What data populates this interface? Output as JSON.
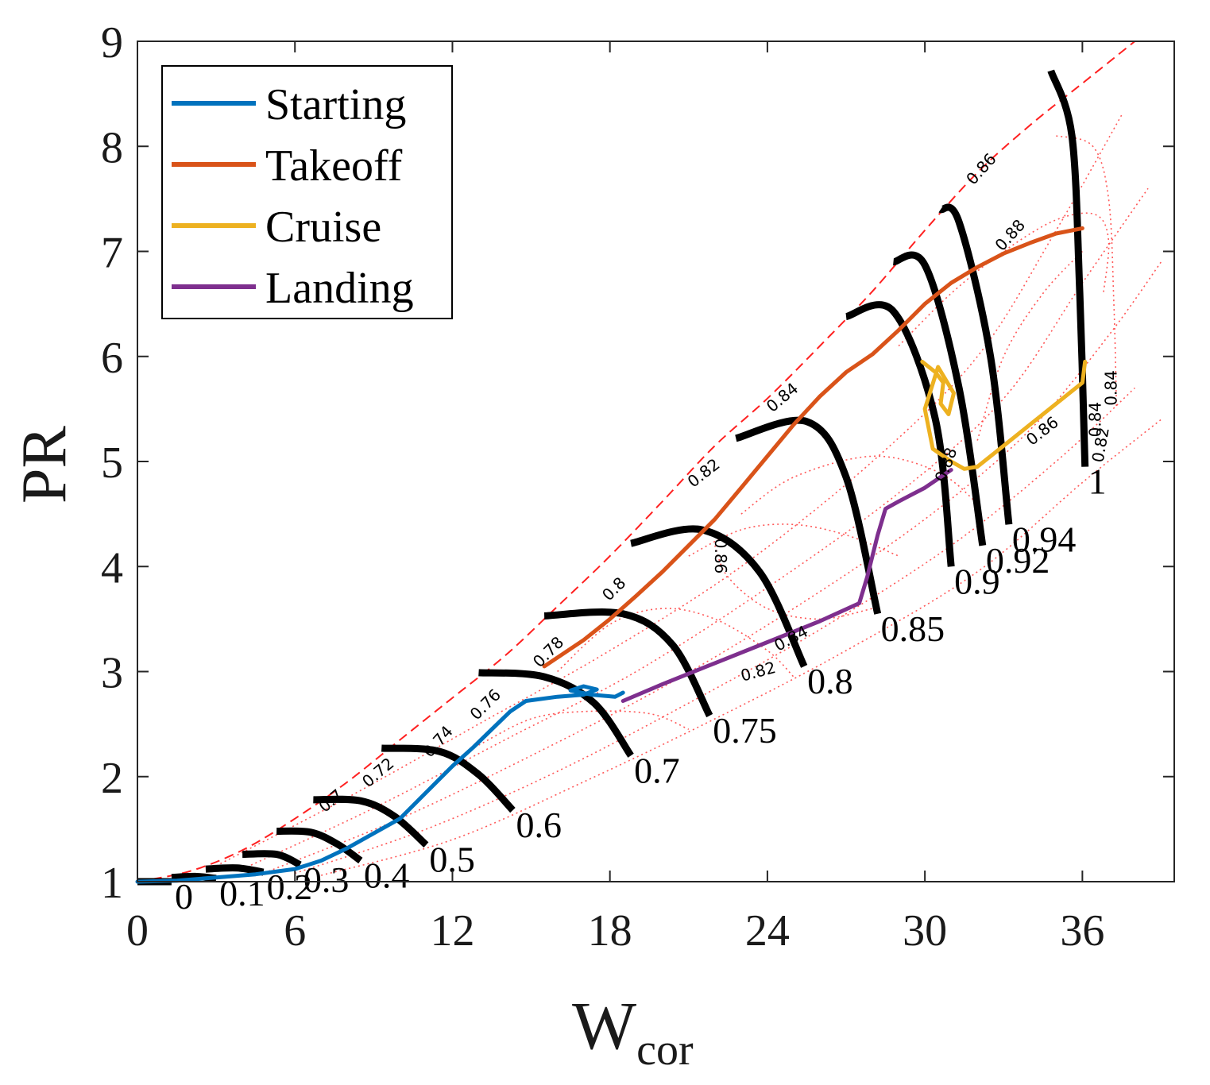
{
  "chart_data": {
    "type": "line",
    "xlabel": "W",
    "xlabel_subscript": "cor",
    "ylabel": "PR",
    "xlim": [
      0,
      39.5
    ],
    "ylim": [
      1,
      9
    ],
    "xticks": [
      0,
      6,
      12,
      18,
      24,
      30,
      36
    ],
    "yticks": [
      1,
      2,
      3,
      4,
      5,
      6,
      7,
      8,
      9
    ],
    "legend_position": "top-left",
    "series": [
      {
        "name": "Starting",
        "color": "#0072BD",
        "points": [
          [
            0,
            1.0
          ],
          [
            1.5,
            1.01
          ],
          [
            3,
            1.04
          ],
          [
            4.5,
            1.07
          ],
          [
            6,
            1.12
          ],
          [
            7,
            1.2
          ],
          [
            8,
            1.32
          ],
          [
            9,
            1.46
          ],
          [
            10,
            1.6
          ],
          [
            11,
            1.85
          ],
          [
            12,
            2.1
          ],
          [
            12.8,
            2.28
          ],
          [
            13.5,
            2.45
          ],
          [
            14.2,
            2.62
          ],
          [
            14.8,
            2.72
          ],
          [
            16,
            2.76
          ],
          [
            17,
            2.78
          ],
          [
            17.5,
            2.83
          ],
          [
            17,
            2.86
          ],
          [
            16.5,
            2.82
          ],
          [
            17.3,
            2.78
          ],
          [
            18.2,
            2.76
          ],
          [
            18.5,
            2.8
          ]
        ]
      },
      {
        "name": "Takeoff",
        "color": "#D95319",
        "points": [
          [
            15.5,
            3.05
          ],
          [
            17,
            3.3
          ],
          [
            18,
            3.5
          ],
          [
            19,
            3.72
          ],
          [
            20,
            3.95
          ],
          [
            21,
            4.2
          ],
          [
            22,
            4.45
          ],
          [
            23,
            4.75
          ],
          [
            24,
            5.05
          ],
          [
            25,
            5.35
          ],
          [
            26,
            5.62
          ],
          [
            27,
            5.85
          ],
          [
            28,
            6.02
          ],
          [
            29,
            6.25
          ],
          [
            30,
            6.5
          ],
          [
            31,
            6.7
          ],
          [
            32,
            6.85
          ],
          [
            33,
            6.98
          ],
          [
            34,
            7.08
          ],
          [
            35,
            7.17
          ],
          [
            36,
            7.22
          ]
        ]
      },
      {
        "name": "Cruise",
        "color": "#EDB120",
        "points": [
          [
            36.1,
            5.95
          ],
          [
            36,
            5.75
          ],
          [
            35,
            5.55
          ],
          [
            34,
            5.35
          ],
          [
            33,
            5.15
          ],
          [
            32,
            4.95
          ],
          [
            31.5,
            4.93
          ],
          [
            31,
            5.0
          ],
          [
            30.3,
            5.12
          ],
          [
            30,
            5.5
          ],
          [
            30.5,
            5.9
          ],
          [
            31.1,
            5.65
          ],
          [
            30.9,
            5.45
          ],
          [
            30.6,
            5.55
          ],
          [
            30.7,
            5.75
          ],
          [
            30.4,
            5.85
          ],
          [
            29.9,
            5.95
          ]
        ]
      },
      {
        "name": "Landing",
        "color": "#7E2F8E",
        "points": [
          [
            18.5,
            2.72
          ],
          [
            20,
            2.88
          ],
          [
            22,
            3.08
          ],
          [
            24,
            3.28
          ],
          [
            26,
            3.48
          ],
          [
            27.5,
            3.65
          ],
          [
            27.8,
            3.9
          ],
          [
            28,
            4.1
          ],
          [
            28.2,
            4.3
          ],
          [
            28.5,
            4.55
          ],
          [
            29,
            4.62
          ],
          [
            30,
            4.75
          ],
          [
            31,
            4.92
          ]
        ]
      }
    ],
    "speed_lines": [
      {
        "label": "0",
        "points": [
          [
            0,
            1.0
          ],
          [
            1.3,
            1.0
          ]
        ]
      },
      {
        "label": "0.1",
        "points": [
          [
            1.3,
            1.04
          ],
          [
            2.2,
            1.05
          ],
          [
            3.0,
            1.03
          ]
        ]
      },
      {
        "label": "0.2",
        "points": [
          [
            2.6,
            1.12
          ],
          [
            3.8,
            1.13
          ],
          [
            4.8,
            1.09
          ]
        ]
      },
      {
        "label": "0.3",
        "points": [
          [
            4.0,
            1.26
          ],
          [
            5.3,
            1.26
          ],
          [
            6.2,
            1.16
          ]
        ]
      },
      {
        "label": "0.4",
        "points": [
          [
            5.3,
            1.48
          ],
          [
            6.6,
            1.47
          ],
          [
            7.6,
            1.36
          ],
          [
            8.5,
            1.2
          ]
        ]
      },
      {
        "label": "0.5",
        "points": [
          [
            6.7,
            1.78
          ],
          [
            8.5,
            1.77
          ],
          [
            9.8,
            1.62
          ],
          [
            11.0,
            1.35
          ]
        ]
      },
      {
        "label": "0.6",
        "points": [
          [
            9.3,
            2.27
          ],
          [
            11.5,
            2.24
          ],
          [
            13.0,
            2.02
          ],
          [
            14.3,
            1.68
          ]
        ]
      },
      {
        "label": "0.7",
        "points": [
          [
            13.0,
            2.99
          ],
          [
            15.5,
            2.95
          ],
          [
            17.4,
            2.7
          ],
          [
            18.8,
            2.2
          ]
        ]
      },
      {
        "label": "0.75",
        "points": [
          [
            15.5,
            3.53
          ],
          [
            18.5,
            3.55
          ],
          [
            20.4,
            3.25
          ],
          [
            21.8,
            2.58
          ]
        ]
      },
      {
        "label": "0.8",
        "points": [
          [
            18.8,
            4.22
          ],
          [
            21.5,
            4.35
          ],
          [
            23.7,
            3.95
          ],
          [
            25.4,
            3.05
          ]
        ]
      },
      {
        "label": "0.85",
        "points": [
          [
            22.8,
            5.22
          ],
          [
            25.5,
            5.38
          ],
          [
            27,
            4.85
          ],
          [
            28.2,
            3.55
          ]
        ]
      },
      {
        "label": "0.9",
        "points": [
          [
            27.0,
            6.38
          ],
          [
            28.8,
            6.43
          ],
          [
            30.4,
            5.4
          ],
          [
            31.0,
            4.0
          ]
        ]
      },
      {
        "label": "0.92",
        "points": [
          [
            28.8,
            6.9
          ],
          [
            30.0,
            6.87
          ],
          [
            31.3,
            5.7
          ],
          [
            32.2,
            4.2
          ]
        ]
      },
      {
        "label": "0.94",
        "points": [
          [
            30.6,
            7.4
          ],
          [
            31.3,
            7.28
          ],
          [
            32.5,
            6.0
          ],
          [
            33.2,
            4.4
          ]
        ]
      },
      {
        "label": "1",
        "points": [
          [
            34.8,
            8.72
          ],
          [
            35.6,
            8.1
          ],
          [
            35.9,
            6.6
          ],
          [
            36.1,
            4.95
          ]
        ]
      }
    ],
    "surge_line": [
      [
        0,
        1.0
      ],
      [
        2,
        1.1
      ],
      [
        4,
        1.3
      ],
      [
        6,
        1.6
      ],
      [
        8,
        1.95
      ],
      [
        10,
        2.35
      ],
      [
        12,
        2.75
      ],
      [
        14,
        3.15
      ],
      [
        16,
        3.62
      ],
      [
        18,
        4.1
      ],
      [
        20,
        4.62
      ],
      [
        22,
        5.15
      ],
      [
        24,
        5.6
      ],
      [
        26,
        6.1
      ],
      [
        28,
        6.62
      ],
      [
        30,
        7.2
      ],
      [
        32,
        7.75
      ],
      [
        34,
        8.2
      ],
      [
        36,
        8.6
      ],
      [
        38,
        9.0
      ]
    ],
    "efficiency_labels": [
      "0.86",
      "0.88",
      "0.84",
      "0.82",
      "0.8",
      "0.78",
      "0.76",
      "0.74",
      "0.72",
      "0.7",
      "0.86",
      "0.84",
      "0.82",
      "0.84",
      "0.86",
      "0.84",
      "0.82",
      "0.88"
    ]
  }
}
